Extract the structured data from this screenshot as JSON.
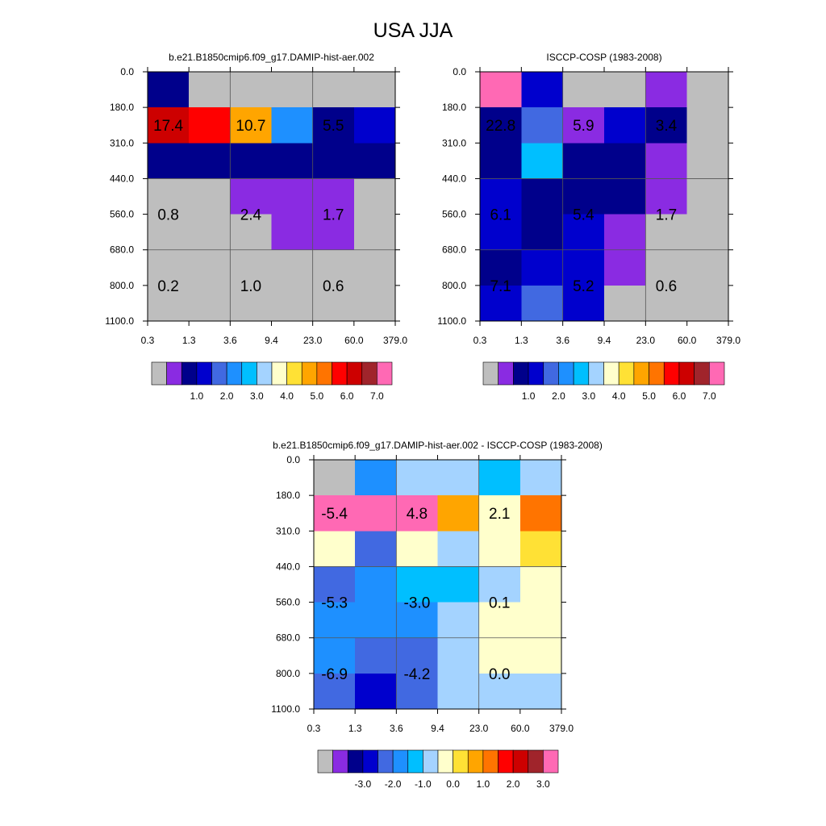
{
  "page": {
    "title": "USA JJA"
  },
  "colors": {
    "palette_abs": [
      "#bebebe",
      "#8a2be2",
      "#00008b",
      "#0000cd",
      "#4169e1",
      "#1e90ff",
      "#00bfff",
      "#a4d3ff",
      "#ffffcc",
      "#ffe135",
      "#ffa500",
      "#ff7400",
      "#ff0000",
      "#cd0000",
      "#a0242b",
      "#ff69b4"
    ],
    "palette_diff": [
      "#bebebe",
      "#8a2be2",
      "#00008b",
      "#0000cd",
      "#4169e1",
      "#1e90ff",
      "#00bfff",
      "#a4d3ff",
      "#ffffcc",
      "#ffe135",
      "#ffa500",
      "#ff7400",
      "#ff0000",
      "#cd0000",
      "#a0242b",
      "#ff69b4"
    ]
  },
  "chart_data": [
    {
      "type": "heatmap",
      "title": "b.e21.B1850cmip6.f09_g17.DAMIP-hist-aer.002",
      "x_ticks": [
        "0.3",
        "1.3",
        "3.6",
        "9.4",
        "23.0",
        "60.0",
        "379.0"
      ],
      "y_ticks": [
        "0.0",
        "180.0",
        "310.0",
        "440.0",
        "560.0",
        "680.0",
        "800.0",
        "1100.0"
      ],
      "cells": [
        [
          2,
          0,
          0,
          0,
          0,
          0
        ],
        [
          13,
          12,
          10,
          5,
          2,
          3
        ],
        [
          2,
          2,
          2,
          2,
          2,
          2
        ],
        [
          0,
          0,
          1,
          1,
          1,
          0
        ],
        [
          0,
          0,
          0,
          1,
          1,
          0
        ],
        [
          0,
          0,
          0,
          0,
          0,
          0
        ],
        [
          0,
          0,
          0,
          0,
          0,
          0
        ]
      ],
      "annotations": [
        {
          "col": 0.5,
          "row": 1.5,
          "text": "17.4"
        },
        {
          "col": 2.5,
          "row": 1.5,
          "text": "10.7"
        },
        {
          "col": 4.5,
          "row": 1.5,
          "text": "5.5"
        },
        {
          "col": 0.5,
          "row": 4,
          "text": "0.8"
        },
        {
          "col": 2.5,
          "row": 4,
          "text": "2.4"
        },
        {
          "col": 4.5,
          "row": 4,
          "text": "1.7"
        },
        {
          "col": 0.5,
          "row": 6,
          "text": "0.2"
        },
        {
          "col": 2.5,
          "row": 6,
          "text": "1.0"
        },
        {
          "col": 4.5,
          "row": 6,
          "text": "0.6"
        }
      ],
      "colorbar": {
        "palette": "palette_abs",
        "labels": [
          "1.0",
          "2.0",
          "3.0",
          "4.0",
          "5.0",
          "6.0",
          "7.0"
        ]
      }
    },
    {
      "type": "heatmap",
      "title": "ISCCP-COSP (1983-2008)",
      "x_ticks": [
        "0.3",
        "1.3",
        "3.6",
        "9.4",
        "23.0",
        "60.0",
        "379.0"
      ],
      "y_ticks": [
        "0.0",
        "180.0",
        "310.0",
        "440.0",
        "560.0",
        "680.0",
        "800.0",
        "1100.0"
      ],
      "cells": [
        [
          15,
          3,
          0,
          0,
          1,
          0
        ],
        [
          2,
          4,
          1,
          3,
          2,
          0
        ],
        [
          2,
          6,
          2,
          2,
          1,
          0
        ],
        [
          3,
          2,
          2,
          2,
          1,
          0
        ],
        [
          3,
          2,
          3,
          1,
          0,
          0
        ],
        [
          2,
          3,
          3,
          1,
          0,
          0
        ],
        [
          3,
          4,
          3,
          0,
          0,
          0
        ]
      ],
      "annotations": [
        {
          "col": 0.5,
          "row": 1.5,
          "text": "22.8"
        },
        {
          "col": 2.5,
          "row": 1.5,
          "text": "5.9"
        },
        {
          "col": 4.5,
          "row": 1.5,
          "text": "3.4"
        },
        {
          "col": 0.5,
          "row": 4,
          "text": "6.1"
        },
        {
          "col": 2.5,
          "row": 4,
          "text": "5.4"
        },
        {
          "col": 4.5,
          "row": 4,
          "text": "1.7"
        },
        {
          "col": 0.5,
          "row": 6,
          "text": "7.1"
        },
        {
          "col": 2.5,
          "row": 6,
          "text": "5.2"
        },
        {
          "col": 4.5,
          "row": 6,
          "text": "0.6"
        }
      ],
      "colorbar": {
        "palette": "palette_abs",
        "labels": [
          "1.0",
          "2.0",
          "3.0",
          "4.0",
          "5.0",
          "6.0",
          "7.0"
        ]
      }
    },
    {
      "type": "heatmap",
      "title": "b.e21.B1850cmip6.f09_g17.DAMIP-hist-aer.002 - ISCCP-COSP (1983-2008)",
      "x_ticks": [
        "0.3",
        "1.3",
        "3.6",
        "9.4",
        "23.0",
        "60.0",
        "379.0"
      ],
      "y_ticks": [
        "0.0",
        "180.0",
        "310.0",
        "440.0",
        "560.0",
        "680.0",
        "800.0",
        "1100.0"
      ],
      "cells": [
        [
          0,
          5,
          7,
          7,
          6,
          7
        ],
        [
          15,
          15,
          15,
          10,
          8,
          11
        ],
        [
          8,
          4,
          8,
          7,
          8,
          9
        ],
        [
          4,
          5,
          6,
          6,
          7,
          8
        ],
        [
          5,
          5,
          5,
          7,
          8,
          8
        ],
        [
          5,
          4,
          4,
          7,
          8,
          8
        ],
        [
          4,
          3,
          4,
          7,
          7,
          7
        ]
      ],
      "annotations": [
        {
          "col": 0.5,
          "row": 1.5,
          "text": "-5.4"
        },
        {
          "col": 2.5,
          "row": 1.5,
          "text": "4.8"
        },
        {
          "col": 4.5,
          "row": 1.5,
          "text": "2.1"
        },
        {
          "col": 0.5,
          "row": 4,
          "text": "-5.3"
        },
        {
          "col": 2.5,
          "row": 4,
          "text": "-3.0"
        },
        {
          "col": 4.5,
          "row": 4,
          "text": "0.1"
        },
        {
          "col": 0.5,
          "row": 6,
          "text": "-6.9"
        },
        {
          "col": 2.5,
          "row": 6,
          "text": "-4.2"
        },
        {
          "col": 4.5,
          "row": 6,
          "text": "0.0"
        }
      ],
      "colorbar": {
        "palette": "palette_diff",
        "labels": [
          "-3.0",
          "-2.0",
          "-1.0",
          "0.0",
          "1.0",
          "2.0",
          "3.0"
        ]
      }
    }
  ]
}
